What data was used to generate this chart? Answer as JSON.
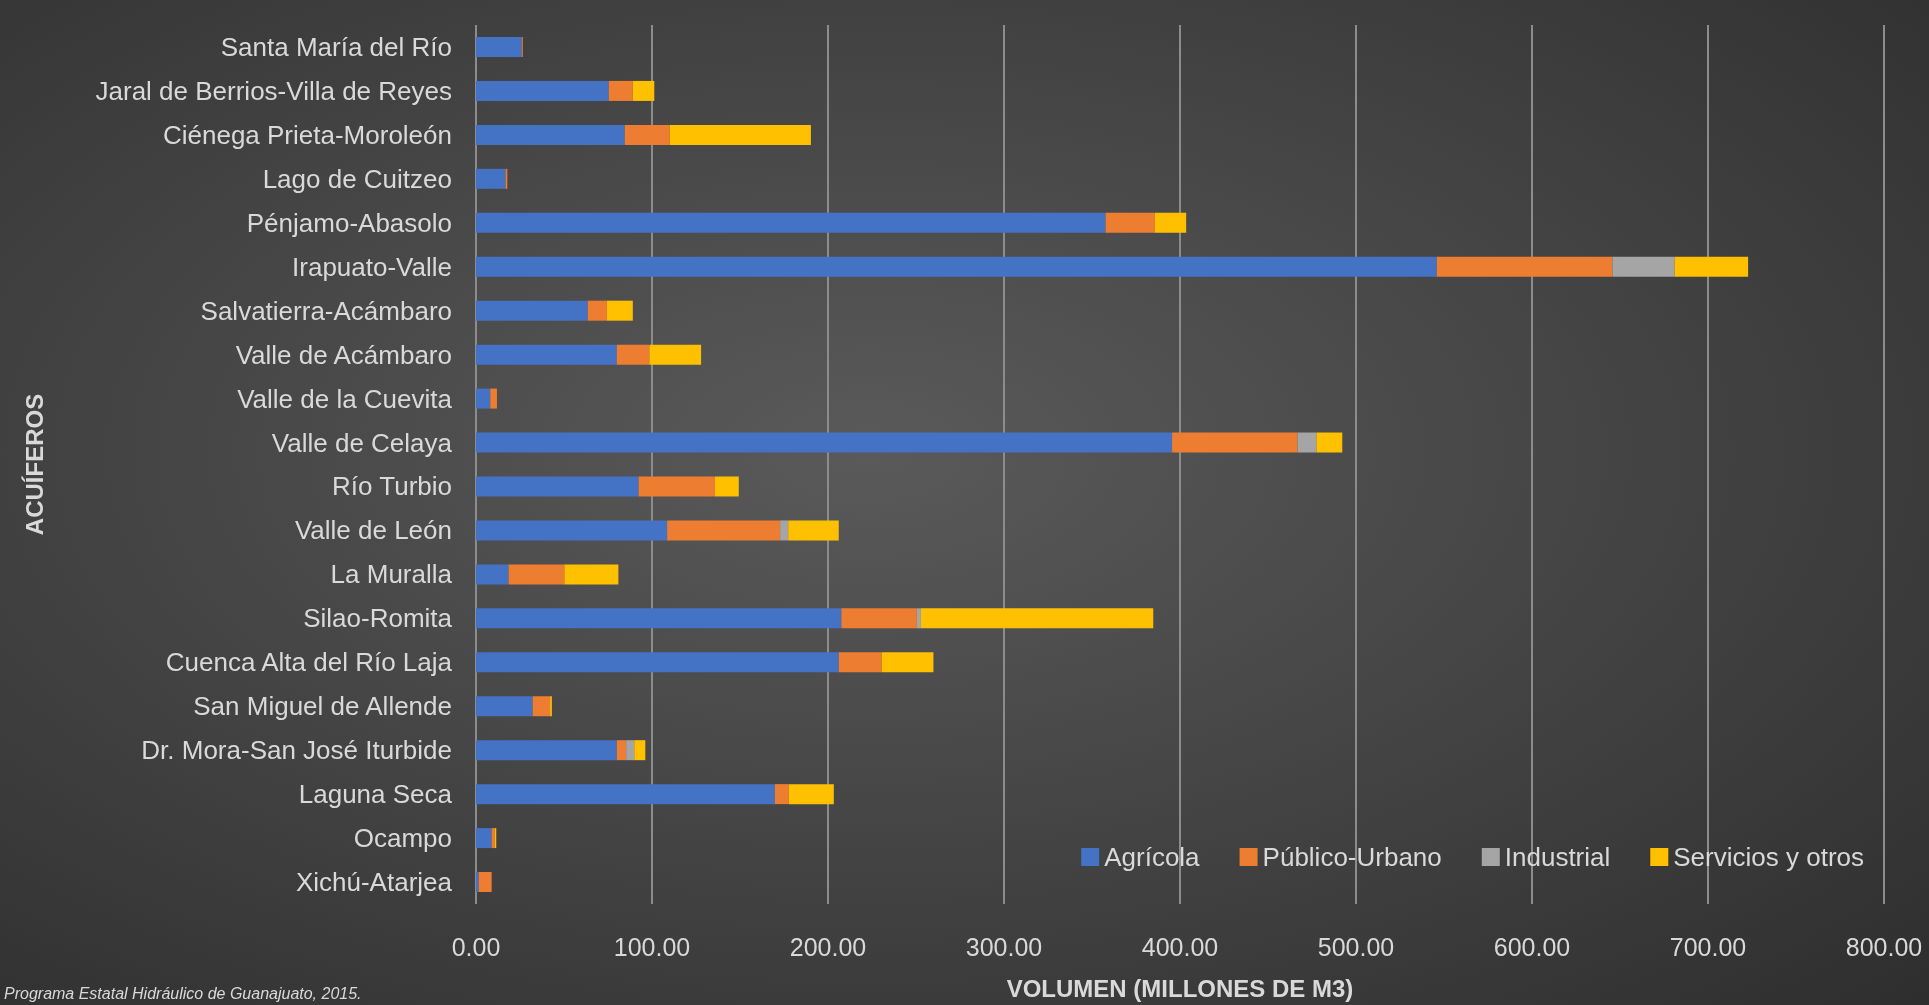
{
  "chart_data": {
    "type": "bar",
    "orientation": "horizontal",
    "stacked": true,
    "xlabel": "VOLUMEN (MILLONES DE M3)",
    "ylabel": "ACUÍFEROS",
    "annotations": [
      "Programa Estatal Hidráulico de Guanajuato, 2015."
    ],
    "categories": [
      "Santa María del Río",
      "Jaral de Berrios-Villa de Reyes",
      "Ciénega Prieta-Moroleón",
      "Lago de Cuitzeo",
      "Pénjamo-Abasolo",
      "Irapuato-Valle",
      "Salvatierra-Acámbaro",
      "Valle de Acámbaro",
      "Valle de la Cuevita",
      "Valle de Celaya",
      "Río Turbio",
      "Valle de León",
      "La Muralla",
      "Silao-Romita",
      "Cuenca Alta del Río Laja",
      "San Miguel de Allende",
      "Dr. Mora-San José Iturbide",
      "Laguna Seca",
      "Ocampo",
      "Xichú-Atarjea"
    ],
    "series": [
      {
        "name": "Agrícola",
        "color": "#4472c4",
        "values": [
          26,
          75.4,
          84.5,
          16.8,
          357.7,
          545.9,
          63.5,
          80,
          8.1,
          395.5,
          92.4,
          108.6,
          18.5,
          207.6,
          206.1,
          32.2,
          80,
          169.8,
          8.9,
          1.5
        ]
      },
      {
        "name": "Público-Urbano",
        "color": "#ed7d31",
        "values": [
          0.6,
          13.7,
          25.6,
          1,
          27.9,
          99.8,
          10.9,
          18.5,
          3.8,
          71.3,
          43.4,
          64.2,
          31.7,
          42.9,
          24.4,
          9.9,
          5.3,
          7.9,
          1.8,
          7.4
        ]
      },
      {
        "name": "Industrial",
        "color": "#a5a5a5",
        "values": [
          null,
          null,
          null,
          null,
          null,
          35.4,
          null,
          null,
          null,
          10.7,
          null,
          4.6,
          null,
          2.3,
          null,
          null,
          4.6,
          null,
          null,
          null
        ]
      },
      {
        "name": "Servicios y otros",
        "color": "#ffc000",
        "values": [
          null,
          12.2,
          80.2,
          null,
          17.9,
          41.7,
          14.7,
          29.4,
          null,
          14.7,
          13.5,
          28.7,
          30.7,
          132,
          29.4,
          1,
          6.3,
          25.6,
          0.8,
          null
        ]
      }
    ],
    "xlim": [
      0,
      800
    ],
    "xticks": [
      {
        "value": 0,
        "label": "0.00"
      },
      {
        "value": 100,
        "label": "100.00"
      },
      {
        "value": 200,
        "label": "200.00"
      },
      {
        "value": 300,
        "label": "300.00"
      },
      {
        "value": 400,
        "label": "400.00"
      },
      {
        "value": 500,
        "label": "500.00"
      },
      {
        "value": 600,
        "label": "600.00"
      },
      {
        "value": 700,
        "label": "700.00"
      },
      {
        "value": 800,
        "label": "800.00"
      }
    ],
    "grid": "x",
    "legend": "bottom right"
  }
}
